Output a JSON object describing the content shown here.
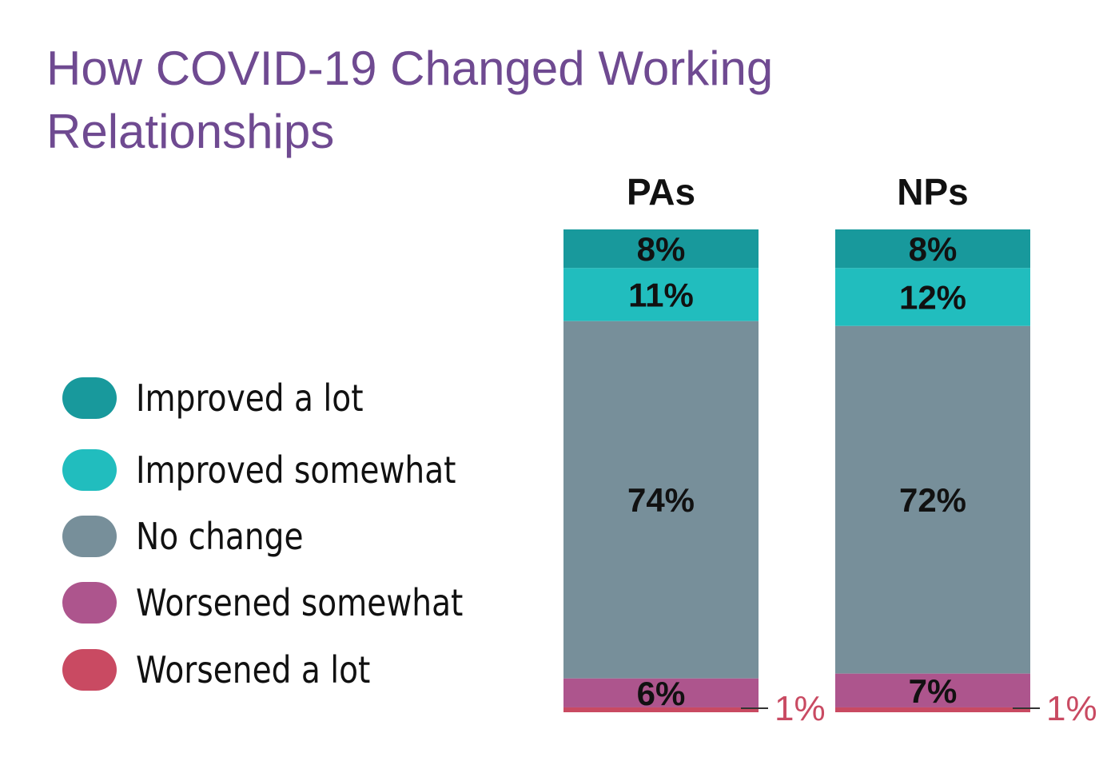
{
  "title": "How COVID-19 Changed Working Relationships",
  "chart_data": {
    "type": "bar",
    "stacked": true,
    "title": "How COVID-19 Changed Working Relationships",
    "categories": [
      "PAs",
      "NPs"
    ],
    "series": [
      {
        "name": "Improved a lot",
        "color": "#18999c",
        "values": [
          8,
          8
        ],
        "labels": [
          "8%",
          "8%"
        ]
      },
      {
        "name": "Improved somewhat",
        "color": "#21bdbe",
        "values": [
          11,
          12
        ],
        "labels": [
          "11%",
          "12%"
        ]
      },
      {
        "name": "No change",
        "color": "#778f9a",
        "values": [
          74,
          72
        ],
        "labels": [
          "74%",
          "72%"
        ]
      },
      {
        "name": "Worsened somewhat",
        "color": "#ad558d",
        "values": [
          6,
          7
        ],
        "labels": [
          "6%",
          "7%"
        ]
      },
      {
        "name": "Worsened a lot",
        "color": "#c94a62",
        "values": [
          1,
          1
        ],
        "labels": [
          "1%",
          "1%"
        ]
      }
    ],
    "ylim": [
      0,
      100
    ],
    "legend": "left"
  }
}
